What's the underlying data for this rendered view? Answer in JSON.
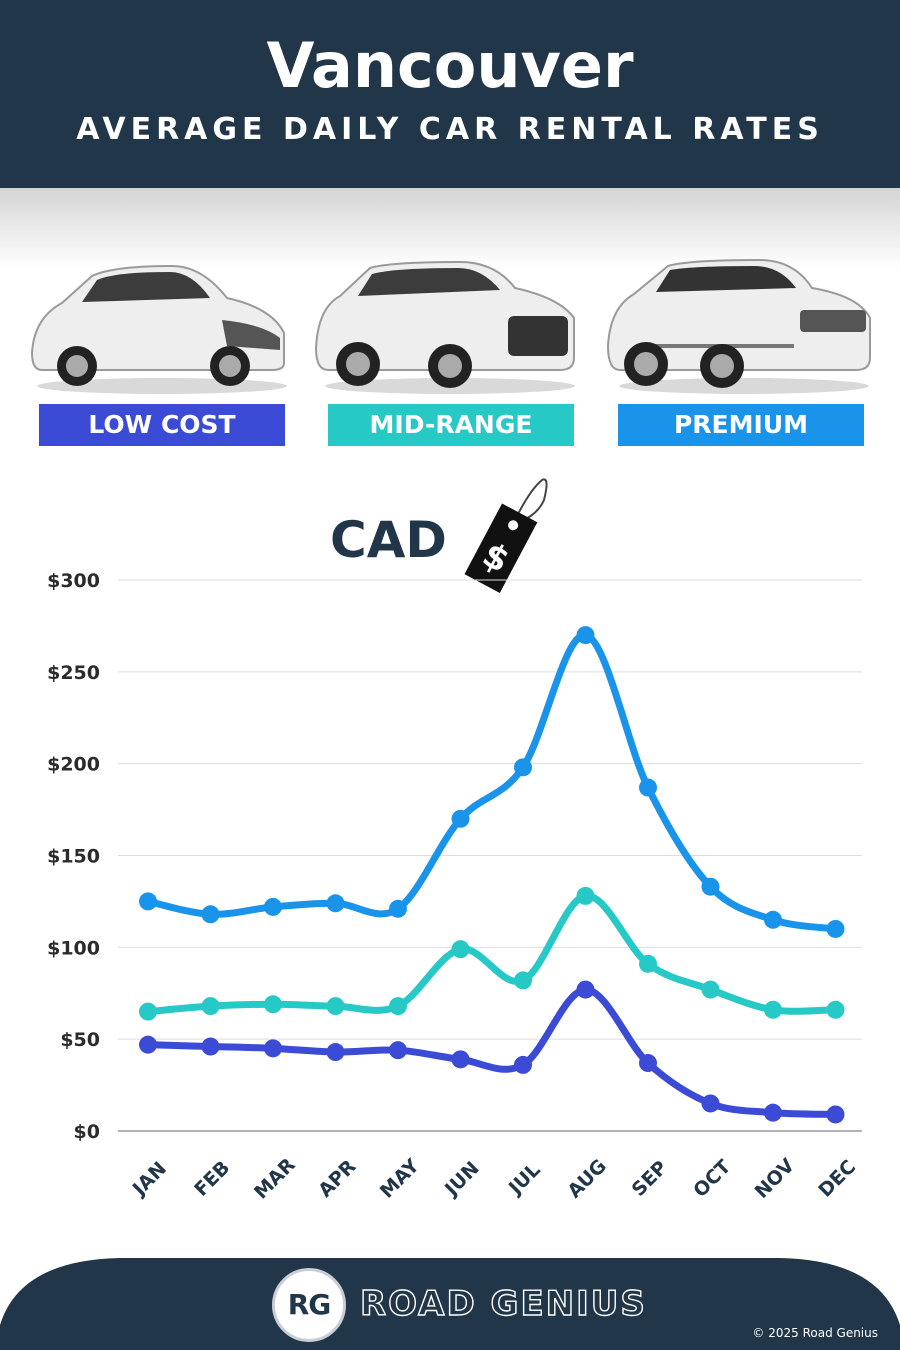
{
  "header": {
    "title": "Vancouver",
    "subtitle": "AVERAGE DAILY CAR RENTAL RATES"
  },
  "categories_badges": [
    {
      "label": "LOW COST",
      "color": "#3b4bd6"
    },
    {
      "label": "MID-RANGE",
      "color": "#27c9c6"
    },
    {
      "label": "PREMIUM",
      "color": "#1a94ea"
    }
  ],
  "currency_label": "CAD",
  "currency_icon": "price-tag-dollar-icon",
  "chart_data": {
    "type": "line",
    "categories": [
      "JAN",
      "FEB",
      "MAR",
      "APR",
      "MAY",
      "JUN",
      "JUL",
      "AUG",
      "SEP",
      "OCT",
      "NOV",
      "DEC"
    ],
    "series": [
      {
        "name": "PREMIUM",
        "color": "#1a94ea",
        "values": [
          125,
          118,
          122,
          124,
          121,
          170,
          198,
          270,
          187,
          133,
          115,
          110
        ]
      },
      {
        "name": "MID-RANGE",
        "color": "#27c9c6",
        "values": [
          65,
          68,
          69,
          68,
          68,
          99,
          82,
          128,
          91,
          77,
          66,
          66
        ]
      },
      {
        "name": "LOW COST",
        "color": "#3b4bd6",
        "values": [
          47,
          46,
          45,
          43,
          44,
          39,
          36,
          77,
          37,
          15,
          10,
          9
        ]
      }
    ],
    "y_ticks": [
      0,
      50,
      100,
      150,
      200,
      250,
      300
    ],
    "y_tick_labels": [
      "$0",
      "$50",
      "$100",
      "$150",
      "$200",
      "$250",
      "$300"
    ],
    "ylim": [
      0,
      300
    ],
    "grid": true
  },
  "footer": {
    "logo_text": "RG",
    "brand": "ROAD GENIUS",
    "copyright": "© 2025 Road Genius"
  }
}
